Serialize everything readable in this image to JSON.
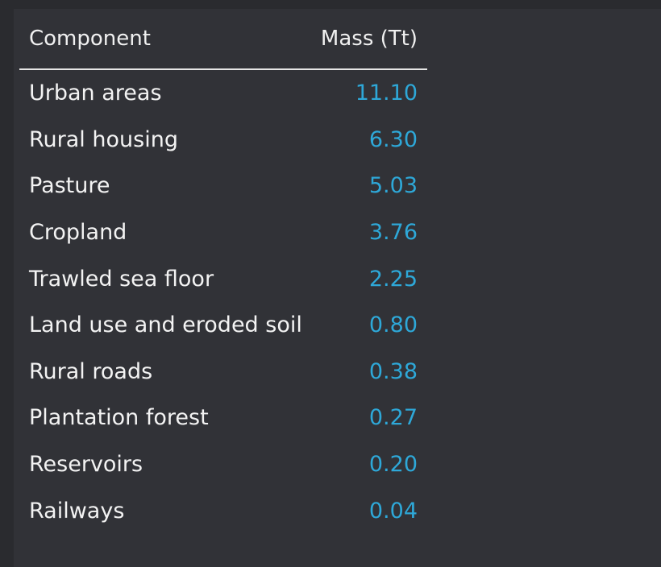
{
  "table": {
    "headers": {
      "component": "Component",
      "mass": "Mass (Tt)"
    },
    "rows": [
      {
        "component": "Urban areas",
        "mass": "11.10"
      },
      {
        "component": "Rural housing",
        "mass": "6.30"
      },
      {
        "component": "Pasture",
        "mass": "5.03"
      },
      {
        "component": "Cropland",
        "mass": "3.76"
      },
      {
        "component": "Trawled sea floor",
        "mass": "2.25"
      },
      {
        "component": "Land use and eroded soil",
        "mass": "0.80"
      },
      {
        "component": "Rural roads",
        "mass": "0.38"
      },
      {
        "component": "Plantation forest",
        "mass": "0.27"
      },
      {
        "component": "Reservoirs",
        "mass": "0.20"
      },
      {
        "component": "Railways",
        "mass": "0.04"
      }
    ]
  },
  "colors": {
    "background": "#2a2b2f",
    "panel": "#313237",
    "text": "#f3f3f3",
    "value": "#2ea8d8",
    "rule": "#e6e6e6"
  }
}
